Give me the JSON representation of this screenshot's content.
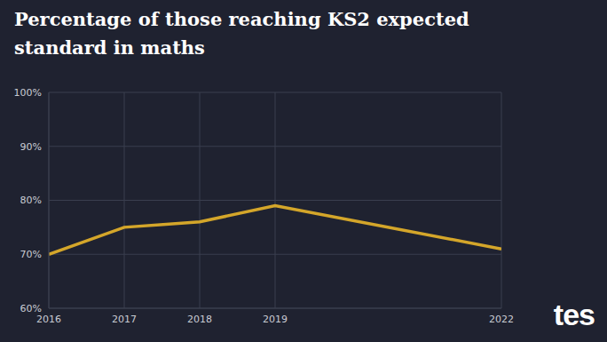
{
  "chart_data": {
    "type": "line",
    "title": "Percentage of those reaching KS2 expected standard in maths",
    "x": [
      2016,
      2017,
      2018,
      2019,
      2022
    ],
    "values": [
      70,
      75,
      76,
      79,
      71
    ],
    "color": "#d4a62a",
    "xlim": [
      2016,
      2022
    ],
    "xticks": [
      2016,
      2017,
      2018,
      2019,
      2022
    ],
    "ylim": [
      60,
      100
    ],
    "yticks": [
      {
        "value": 60,
        "label": "60%"
      },
      {
        "value": 70,
        "label": "70%"
      },
      {
        "value": 80,
        "label": "80%"
      },
      {
        "value": 90,
        "label": "90%"
      },
      {
        "value": 100,
        "label": "100%"
      }
    ],
    "grid": true
  },
  "logo": "tes"
}
